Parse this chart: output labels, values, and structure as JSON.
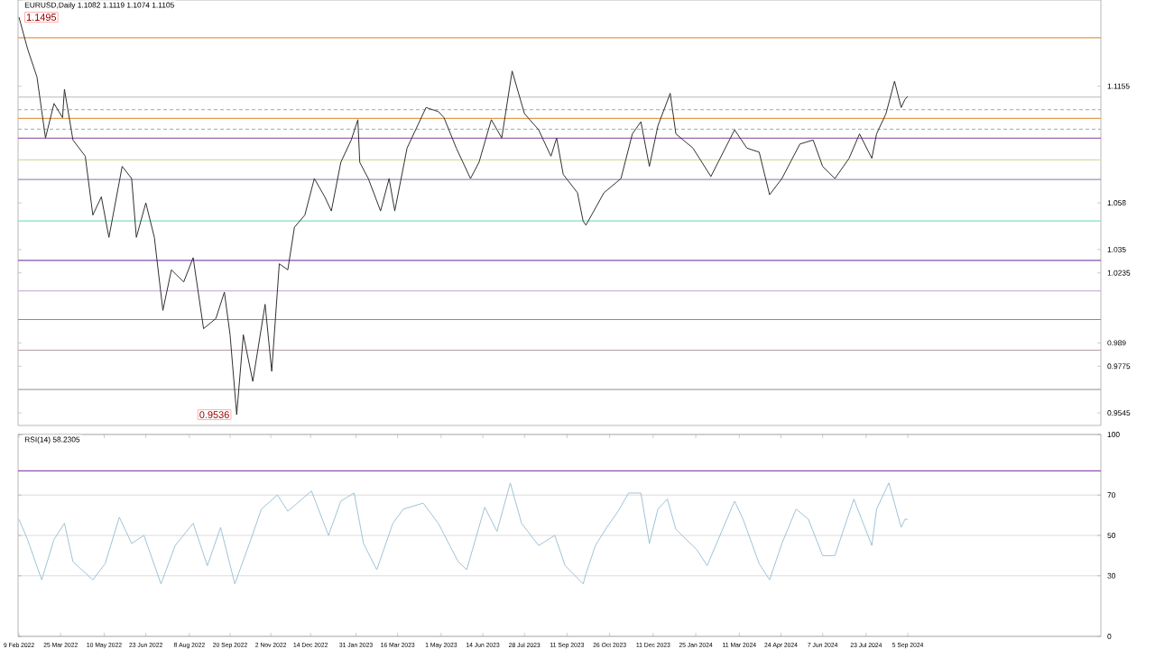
{
  "chart_data": [
    {
      "type": "line",
      "title": "EURUSD,Daily 1.1082 1.1119 1.1074 1.1105",
      "color": "#303030",
      "x": [
        "2022-02-09",
        "2022-02-18",
        "2022-02-28",
        "2022-03-09",
        "2022-03-18",
        "2022-03-27",
        "2022-03-29",
        "2022-04-07",
        "2022-04-20",
        "2022-04-28",
        "2022-05-07",
        "2022-05-15",
        "2022-05-29",
        "2022-06-08",
        "2022-06-13",
        "2022-06-23",
        "2022-07-02",
        "2022-07-11",
        "2022-07-20",
        "2022-08-02",
        "2022-08-12",
        "2022-08-23",
        "2022-09-05",
        "2022-09-14",
        "2022-09-20",
        "2022-09-27",
        "2022-10-04",
        "2022-10-14",
        "2022-10-27",
        "2022-11-03",
        "2022-11-11",
        "2022-11-20",
        "2022-11-27",
        "2022-12-08",
        "2022-12-18",
        "2022-12-29",
        "2023-01-05",
        "2023-01-15",
        "2023-01-26",
        "2023-02-02",
        "2023-02-04",
        "2023-02-13",
        "2023-02-26",
        "2023-03-07",
        "2023-03-13",
        "2023-03-26",
        "2023-04-15",
        "2023-04-28",
        "2023-05-04",
        "2023-05-17",
        "2023-06-01",
        "2023-06-10",
        "2023-06-23",
        "2023-07-04",
        "2023-07-15",
        "2023-07-28",
        "2023-08-12",
        "2023-08-25",
        "2023-08-31",
        "2023-09-07",
        "2023-09-22",
        "2023-09-28",
        "2023-10-01",
        "2023-10-20",
        "2023-11-07",
        "2023-11-19",
        "2023-11-28",
        "2023-12-07",
        "2023-12-16",
        "2023-12-29",
        "2024-01-04",
        "2024-01-22",
        "2024-02-10",
        "2024-03-06",
        "2024-03-19",
        "2024-04-01",
        "2024-04-12",
        "2024-04-25",
        "2024-05-14",
        "2024-05-28",
        "2024-06-07",
        "2024-06-20",
        "2024-07-05",
        "2024-07-16",
        "2024-07-29",
        "2024-08-03",
        "2024-08-13",
        "2024-08-22",
        "2024-08-29",
        "2024-09-02",
        "2024-09-05"
      ],
      "values": [
        1.1495,
        1.134,
        1.12,
        1.09,
        1.107,
        1.1,
        1.114,
        1.089,
        1.081,
        1.052,
        1.061,
        1.041,
        1.076,
        1.07,
        1.041,
        1.058,
        1.041,
        1.005,
        1.025,
        1.019,
        1.031,
        0.996,
        1.001,
        1.014,
        0.993,
        0.9536,
        0.993,
        0.97,
        1.008,
        0.975,
        1.028,
        1.025,
        1.046,
        1.052,
        1.07,
        1.061,
        1.054,
        1.078,
        1.089,
        1.099,
        1.078,
        1.07,
        1.054,
        1.07,
        1.054,
        1.085,
        1.105,
        1.103,
        1.1,
        1.085,
        1.07,
        1.078,
        1.099,
        1.09,
        1.123,
        1.102,
        1.094,
        1.081,
        1.09,
        1.072,
        1.063,
        1.049,
        1.047,
        1.063,
        1.07,
        1.092,
        1.098,
        1.076,
        1.096,
        1.112,
        1.092,
        1.085,
        1.071,
        1.094,
        1.085,
        1.083,
        1.062,
        1.07,
        1.087,
        1.089,
        1.076,
        1.07,
        1.08,
        1.092,
        1.08,
        1.092,
        1.102,
        1.118,
        1.105,
        1.109,
        1.1105
      ],
      "xlim": [
        "2022-02-08",
        "2025-03-28"
      ],
      "ylim": [
        0.9483,
        1.158
      ],
      "yticks": [
        0.9545,
        0.9775,
        0.989,
        1.0235,
        1.035,
        1.058,
        1.1155
      ],
      "tick_labels": "y",
      "ref_lines": [
        {
          "axis": "y",
          "value": 1.1394,
          "color": "#e39a4b"
        },
        {
          "axis": "y",
          "value": 1.1102,
          "color": "#c8c8c8"
        },
        {
          "axis": "y",
          "value": 1.104,
          "color": "#b8b8b8",
          "line_style": "dashed"
        },
        {
          "axis": "y",
          "value": 1.0996,
          "color": "#e39a4b"
        },
        {
          "axis": "y",
          "value": 1.0943,
          "color": "#b8b8b8",
          "line_style": "dashed"
        },
        {
          "axis": "y",
          "value": 1.0899,
          "color": "#8040a0"
        },
        {
          "axis": "y",
          "value": 1.0792,
          "color": "#d0e0a0"
        },
        {
          "axis": "y",
          "value": 1.0695,
          "color": "#a090b0"
        },
        {
          "axis": "y",
          "value": 1.0491,
          "color": "#80e0c0"
        },
        {
          "axis": "y",
          "value": 1.0297,
          "color": "#8050b0"
        },
        {
          "axis": "y",
          "value": 1.0146,
          "color": "#c0a0d0"
        },
        {
          "axis": "y",
          "value": 1.0005,
          "color": "#e07040"
        },
        {
          "axis": "y",
          "value": 0.9854,
          "color": "#b0a0a0"
        },
        {
          "axis": "y",
          "value": 0.966,
          "color": "#b0a0a0"
        }
      ],
      "annotations": [
        {
          "text": "1.1495",
          "x": "2022-02-09",
          "y": 1.1495
        },
        {
          "text": "0.9536",
          "x": "2022-09-27",
          "y": 0.9536
        }
      ]
    },
    {
      "type": "line",
      "title": "RSI(14) 58.2305",
      "color": "#9ec3d6",
      "x": [
        "2022-02-09",
        "2022-02-18",
        "2022-03-05",
        "2022-03-18",
        "2022-03-29",
        "2022-04-07",
        "2022-04-28",
        "2022-05-11",
        "2022-05-26",
        "2022-06-08",
        "2022-06-21",
        "2022-07-09",
        "2022-07-24",
        "2022-08-12",
        "2022-08-27",
        "2022-09-10",
        "2022-09-25",
        "2022-10-12",
        "2022-10-23",
        "2022-11-09",
        "2022-11-20",
        "2022-12-15",
        "2023-01-02",
        "2023-01-15",
        "2023-01-29",
        "2023-02-08",
        "2023-02-22",
        "2023-03-11",
        "2023-03-22",
        "2023-04-12",
        "2023-04-28",
        "2023-05-19",
        "2023-05-28",
        "2023-06-16",
        "2023-06-29",
        "2023-07-13",
        "2023-07-25",
        "2023-08-12",
        "2023-08-29",
        "2023-09-09",
        "2023-09-28",
        "2023-10-01",
        "2023-10-11",
        "2023-10-23",
        "2023-11-04",
        "2023-11-15",
        "2023-11-28",
        "2023-12-07",
        "2023-12-16",
        "2023-12-26",
        "2024-01-04",
        "2024-01-26",
        "2024-02-06",
        "2024-03-06",
        "2024-03-15",
        "2024-04-01",
        "2024-04-12",
        "2024-04-25",
        "2024-05-10",
        "2024-05-23",
        "2024-06-07",
        "2024-06-20",
        "2024-07-10",
        "2024-07-29",
        "2024-08-03",
        "2024-08-16",
        "2024-08-29",
        "2024-09-02",
        "2024-09-05"
      ],
      "values": [
        58,
        48,
        28,
        48,
        56,
        37,
        28,
        36,
        59,
        46,
        50,
        26,
        45,
        56,
        35,
        54,
        26,
        48,
        63,
        70,
        62,
        72,
        50,
        67,
        71,
        46,
        33,
        56,
        63,
        66,
        56,
        37,
        33,
        64,
        52,
        76,
        56,
        45,
        50,
        35,
        26,
        31,
        45,
        54,
        62,
        71,
        71,
        46,
        63,
        68,
        53,
        43,
        35,
        67,
        58,
        36,
        28,
        46,
        63,
        58,
        40,
        40,
        68,
        45,
        63,
        76,
        54,
        58,
        58
      ],
      "xlim": [
        "2022-02-08",
        "2025-03-28"
      ],
      "ylim": [
        0,
        100
      ],
      "yticks": [
        0,
        30,
        50,
        70,
        100
      ],
      "grid": "y",
      "xticks": [
        {
          "value": "2022-02-09",
          "label": "9 Feb 2022"
        },
        {
          "value": "2022-03-25",
          "label": "25 Mar 2022"
        },
        {
          "value": "2022-05-10",
          "label": "10 May 2022"
        },
        {
          "value": "2022-06-23",
          "label": "23 Jun 2022"
        },
        {
          "value": "2022-08-08",
          "label": "8 Aug 2022"
        },
        {
          "value": "2022-09-20",
          "label": "20 Sep 2022"
        },
        {
          "value": "2022-11-02",
          "label": "2 Nov 2022"
        },
        {
          "value": "2022-12-14",
          "label": "14 Dec 2022"
        },
        {
          "value": "2023-01-31",
          "label": "31 Jan 2023"
        },
        {
          "value": "2023-03-16",
          "label": "16 Mar 2023"
        },
        {
          "value": "2023-05-01",
          "label": "1 May 2023"
        },
        {
          "value": "2023-06-14",
          "label": "14 Jun 2023"
        },
        {
          "value": "2023-07-28",
          "label": "28 Jul 2023"
        },
        {
          "value": "2023-09-11",
          "label": "11 Sep 2023"
        },
        {
          "value": "2023-10-26",
          "label": "26 Oct 2023"
        },
        {
          "value": "2023-12-11",
          "label": "11 Dec 2023"
        },
        {
          "value": "2024-01-25",
          "label": "25 Jan 2024"
        },
        {
          "value": "2024-03-11",
          "label": "11 Mar 2024"
        },
        {
          "value": "2024-04-24",
          "label": "24 Apr 2024"
        },
        {
          "value": "2024-06-07",
          "label": "7 Jun 2024"
        },
        {
          "value": "2024-07-23",
          "label": "23 Jul 2024"
        },
        {
          "value": "2024-09-05",
          "label": "5 Sep 2024"
        }
      ],
      "ref_lines": [
        {
          "axis": "y",
          "value": 82,
          "color": "#9050b0"
        }
      ]
    }
  ]
}
